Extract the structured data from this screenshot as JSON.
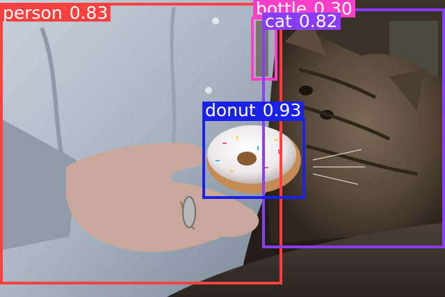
{
  "detections": [
    {
      "label": "person",
      "score": "0.83",
      "color": "#ff4040"
    },
    {
      "label": "bottle",
      "score": "0.30",
      "color": "#ff3fc8"
    },
    {
      "label": "cat",
      "score": "0.82",
      "color": "#8a3cff"
    },
    {
      "label": "donut",
      "score": "0.93",
      "color": "#1a22e8"
    }
  ]
}
